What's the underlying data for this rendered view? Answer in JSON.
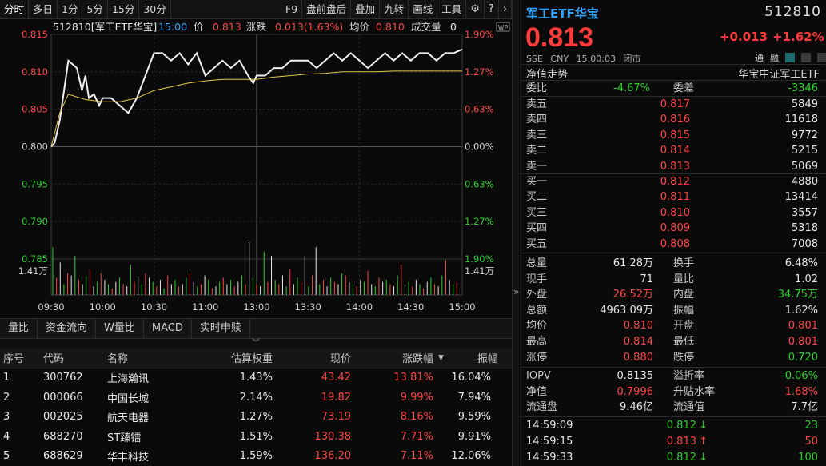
{
  "toolbar": {
    "left": [
      "分时",
      "多日",
      "1分",
      "5分",
      "15分",
      "30分"
    ],
    "right": [
      "F9",
      "盘前盘后",
      "叠加",
      "九转",
      "画线",
      "工具"
    ],
    "icons": [
      "gear-icon",
      "help-icon",
      "chevron-left-icon",
      "chevron-right-icon"
    ]
  },
  "chart_header": {
    "code_name": "512810[军工ETF华宝]",
    "time": "15:00",
    "price_label": "价",
    "price": "0.813",
    "change_label": "涨跌",
    "change": "0.013(1.63%)",
    "avg_label": "均价",
    "avg": "0.810",
    "volume_label": "成交量",
    "volume": "0",
    "badge": "WP"
  },
  "chart_data": {
    "type": "line",
    "price_axis": [
      "0.815",
      "0.810",
      "0.805",
      "0.800",
      "0.795",
      "0.790",
      "0.785"
    ],
    "pct_axis": [
      "1.90%",
      "1.27%",
      "0.63%",
      "0.00%",
      "0.63%",
      "1.27%",
      "1.90%"
    ],
    "volume_label": "1.41万",
    "x_ticks": [
      "09:30",
      "10:00",
      "10:30",
      "11:00",
      "13:00",
      "13:30",
      "14:00",
      "14:30",
      "15:00"
    ],
    "ylim": [
      0.785,
      0.815
    ],
    "base": 0.8,
    "series": [
      {
        "x": [
          0,
          2,
          5,
          10,
          15,
          18,
          20,
          22,
          25,
          28,
          30,
          35,
          40,
          45,
          50,
          55,
          60,
          65,
          70,
          75,
          80,
          85,
          90,
          95,
          100,
          105,
          110,
          115,
          118,
          120,
          125,
          130,
          135,
          140,
          145,
          150,
          155,
          160,
          165,
          170,
          175,
          180,
          185,
          190,
          195,
          200,
          205,
          210,
          215,
          220,
          225,
          230,
          235,
          240
        ],
        "values": [
          0.8,
          0.8005,
          0.8035,
          0.8115,
          0.8105,
          0.8075,
          0.8095,
          0.8065,
          0.807,
          0.8055,
          0.8065,
          0.8065,
          0.8055,
          0.8045,
          0.8065,
          0.8095,
          0.8125,
          0.8125,
          0.8115,
          0.8125,
          0.811,
          0.8125,
          0.8095,
          0.8105,
          0.8115,
          0.8105,
          0.8115,
          0.8095,
          0.8085,
          0.8095,
          0.8095,
          0.8105,
          0.8105,
          0.8115,
          0.8115,
          0.8115,
          0.8105,
          0.8115,
          0.8125,
          0.8115,
          0.8125,
          0.8115,
          0.8105,
          0.8115,
          0.8125,
          0.8115,
          0.8125,
          0.8115,
          0.8125,
          0.8125,
          0.8115,
          0.8125,
          0.8125,
          0.813
        ]
      },
      {
        "x": [
          0,
          5,
          10,
          20,
          30,
          40,
          50,
          60,
          70,
          80,
          90,
          100,
          110,
          120,
          130,
          140,
          150,
          160,
          170,
          180,
          190,
          200,
          210,
          220,
          230,
          240
        ],
        "values": [
          0.8,
          0.8045,
          0.807,
          0.8063,
          0.806,
          0.806,
          0.8065,
          0.8075,
          0.808,
          0.8085,
          0.8088,
          0.809,
          0.809,
          0.809,
          0.8093,
          0.8095,
          0.8097,
          0.8098,
          0.81,
          0.81,
          0.81,
          0.8101,
          0.8101,
          0.8101,
          0.8101,
          0.8101
        ]
      }
    ],
    "volume_bars": [
      22,
      8,
      15,
      5,
      10,
      9,
      18,
      7,
      5,
      9,
      12,
      4,
      6,
      10,
      7,
      5,
      3,
      6,
      8,
      5,
      4,
      14,
      6,
      9,
      5,
      10,
      8,
      6,
      4,
      7,
      3,
      9,
      5,
      7,
      4,
      5,
      8,
      10,
      6,
      4,
      5,
      9,
      7,
      3,
      4,
      6,
      8,
      5,
      7,
      4,
      6,
      9,
      5,
      30,
      8,
      5,
      4,
      20,
      6,
      18,
      7,
      5,
      9,
      4,
      12,
      5,
      8,
      6,
      18,
      4,
      9,
      22,
      5,
      7,
      4,
      8,
      6,
      5,
      10,
      9,
      6,
      5,
      4,
      7,
      6,
      11,
      5,
      4,
      8,
      6,
      7,
      5,
      4,
      9,
      14,
      5,
      6,
      4,
      7,
      5,
      3,
      6,
      8,
      5,
      4,
      9,
      16,
      7,
      5,
      6
    ]
  },
  "tabs": [
    "量比",
    "资金流向",
    "W量比",
    "MACD",
    "实时申赎"
  ],
  "table": {
    "headers": [
      "序号",
      "代码",
      "名称",
      "估算权重",
      "现价",
      "涨跌幅",
      "振幅"
    ],
    "sort_icon": "▼",
    "rows": [
      [
        "1",
        "300762",
        "上海瀚讯",
        "1.43%",
        "43.42",
        "13.81%",
        "16.04%"
      ],
      [
        "2",
        "000066",
        "中国长城",
        "2.14%",
        "19.82",
        "9.99%",
        "7.94%"
      ],
      [
        "3",
        "002025",
        "航天电器",
        "1.27%",
        "73.19",
        "8.16%",
        "9.59%"
      ],
      [
        "4",
        "688270",
        "ST臻镭",
        "1.51%",
        "130.38",
        "7.71%",
        "9.91%"
      ],
      [
        "5",
        "688629",
        "华丰科技",
        "1.59%",
        "136.20",
        "7.11%",
        "12.06%"
      ]
    ]
  },
  "splitter_arrow": "»",
  "quote": {
    "name": "军工ETF华宝",
    "code": "512810",
    "price": "0.813",
    "change": "+0.013",
    "change_pct": "+1.62%",
    "exchange": "SSE",
    "currency": "CNY",
    "time": "15:00:03",
    "status": "闭市",
    "tags": [
      "通",
      "融"
    ],
    "nav_trend": "净值走势",
    "index_name": "华宝中证军工ETF",
    "weibi_label": "委比",
    "weibi": "-4.67%",
    "weicha_label": "委差",
    "weicha": "-3346",
    "asks": [
      {
        "label": "卖五",
        "price": "0.817",
        "vol": "5849"
      },
      {
        "label": "卖四",
        "price": "0.816",
        "vol": "11618"
      },
      {
        "label": "卖三",
        "price": "0.815",
        "vol": "9772"
      },
      {
        "label": "卖二",
        "price": "0.814",
        "vol": "5215"
      },
      {
        "label": "卖一",
        "price": "0.813",
        "vol": "5069"
      }
    ],
    "bids": [
      {
        "label": "买一",
        "price": "0.812",
        "vol": "4880"
      },
      {
        "label": "买二",
        "price": "0.811",
        "vol": "13414"
      },
      {
        "label": "买三",
        "price": "0.810",
        "vol": "3557"
      },
      {
        "label": "买四",
        "price": "0.809",
        "vol": "5318"
      },
      {
        "label": "买五",
        "price": "0.808",
        "vol": "7008"
      }
    ],
    "stats": [
      [
        "总量",
        "61.28万",
        "white",
        "换手",
        "6.48%",
        "white"
      ],
      [
        "现手",
        "71",
        "white",
        "量比",
        "1.02",
        "white"
      ],
      [
        "外盘",
        "26.52万",
        "red",
        "内盘",
        "34.75万",
        "green"
      ],
      [
        "总额",
        "4963.09万",
        "white",
        "振幅",
        "1.62%",
        "white"
      ],
      [
        "均价",
        "0.810",
        "red",
        "开盘",
        "0.801",
        "red"
      ],
      [
        "最高",
        "0.814",
        "red",
        "最低",
        "0.801",
        "red"
      ],
      [
        "涨停",
        "0.880",
        "red",
        "跌停",
        "0.720",
        "green"
      ]
    ],
    "stats2": [
      [
        "IOPV",
        "0.8135",
        "white",
        "溢折率",
        "-0.06%",
        "green"
      ],
      [
        "净值",
        "0.7996",
        "red",
        "升贴水率",
        "1.68%",
        "red"
      ],
      [
        "流通盘",
        "9.46亿",
        "white",
        "流通值",
        "7.7亿",
        "white"
      ]
    ],
    "ticks": [
      {
        "time": "14:59:09",
        "price": "0.812",
        "dir": "↓",
        "vol": "23",
        "color": "green"
      },
      {
        "time": "14:59:15",
        "price": "0.813",
        "dir": "↑",
        "vol": "50",
        "color": "red"
      },
      {
        "time": "14:59:33",
        "price": "0.812",
        "dir": "↓",
        "vol": "100",
        "color": "green"
      }
    ]
  }
}
